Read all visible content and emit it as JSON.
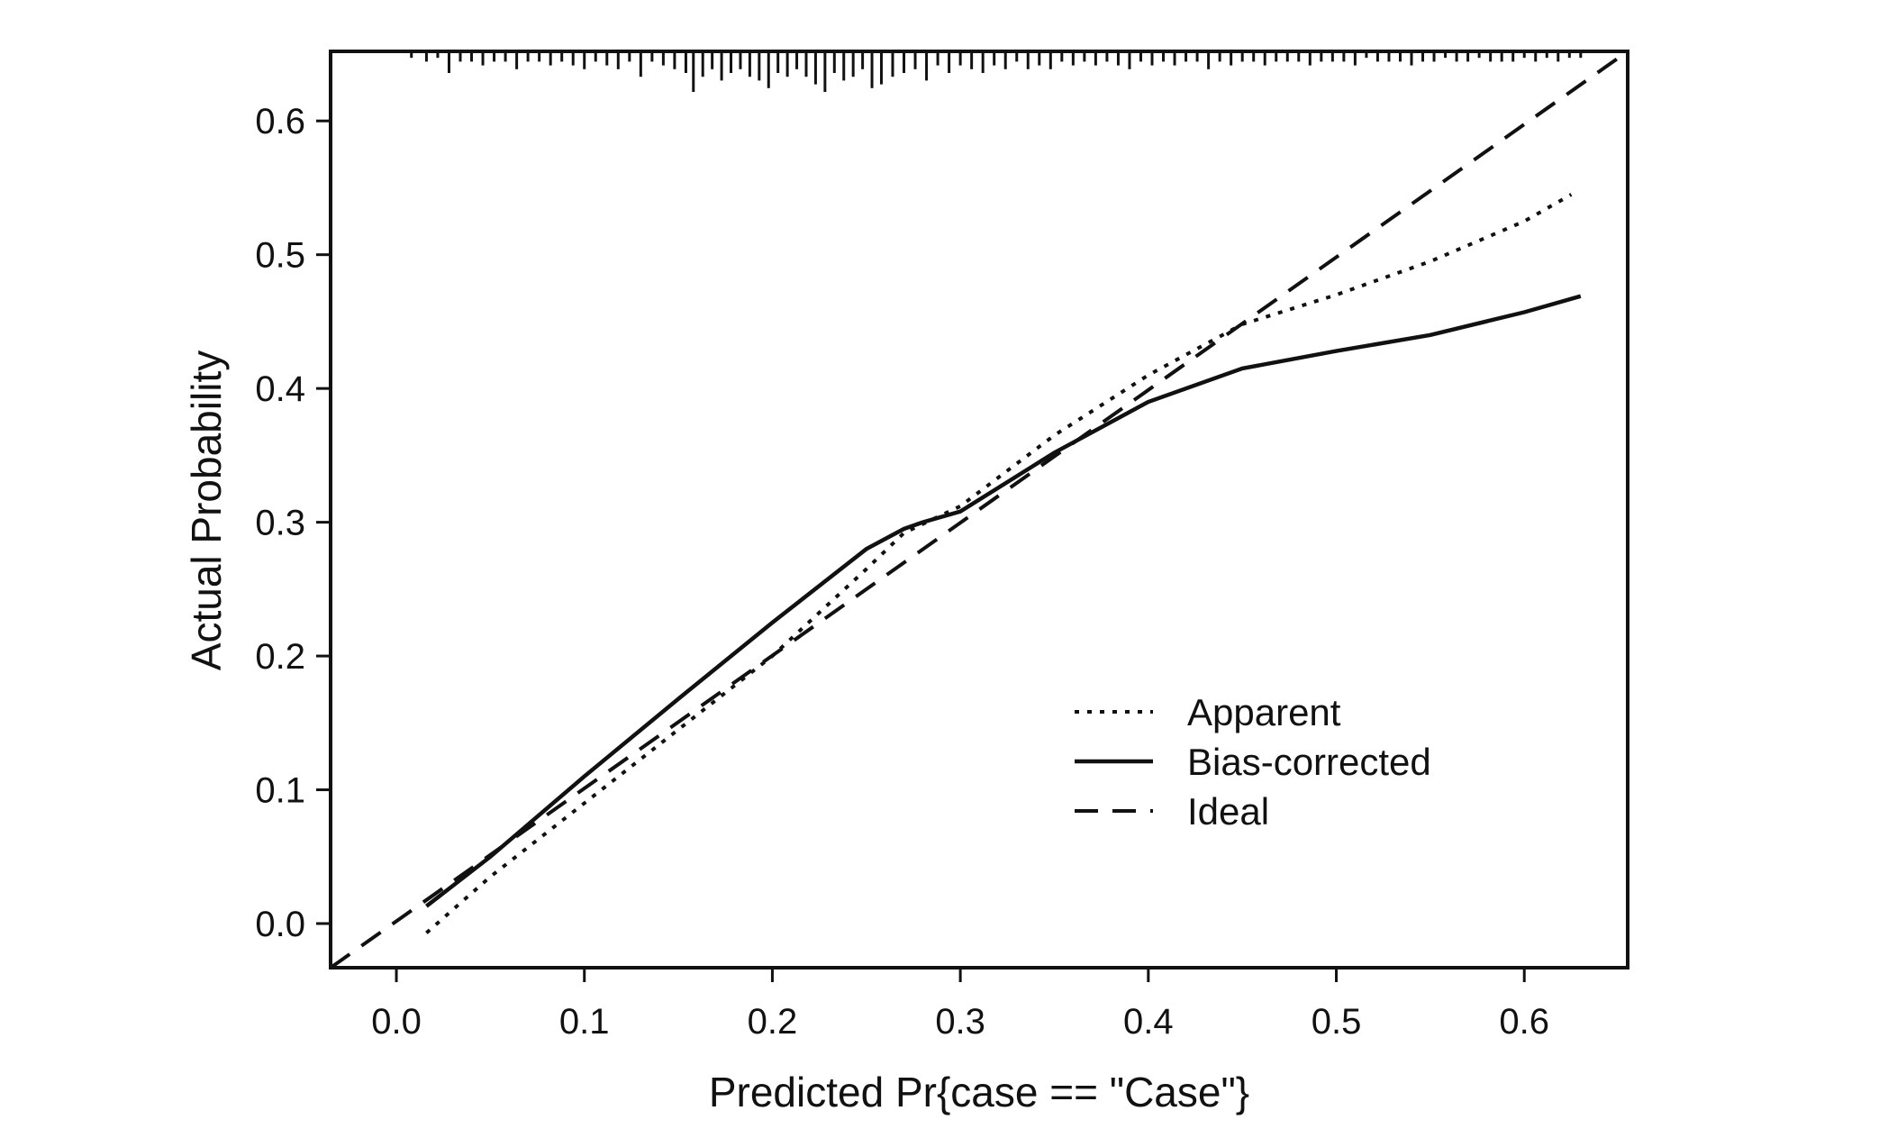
{
  "chart_data": {
    "type": "line",
    "xlabel": "Predicted Pr{case == \"Case\"}",
    "ylabel": "Actual Probability",
    "xlim": [
      -0.035,
      0.655
    ],
    "ylim": [
      -0.033,
      0.652
    ],
    "xticks": [
      0.0,
      0.1,
      0.2,
      0.3,
      0.4,
      0.5,
      0.6
    ],
    "xtick_labels": [
      "0.0",
      "0.1",
      "0.2",
      "0.3",
      "0.4",
      "0.5",
      "0.6"
    ],
    "yticks": [
      0.0,
      0.1,
      0.2,
      0.3,
      0.4,
      0.5,
      0.6
    ],
    "ytick_labels": [
      "0.0",
      "0.1",
      "0.2",
      "0.3",
      "0.4",
      "0.5",
      "0.6"
    ],
    "grid": false,
    "legend_position": "lower-right",
    "series": [
      {
        "name": "Apparent",
        "style": "dotted",
        "x": [
          0.016,
          0.05,
          0.1,
          0.15,
          0.2,
          0.25,
          0.27,
          0.3,
          0.35,
          0.4,
          0.45,
          0.5,
          0.55,
          0.6,
          0.625
        ],
        "y": [
          -0.007,
          0.035,
          0.09,
          0.145,
          0.2,
          0.265,
          0.292,
          0.312,
          0.365,
          0.41,
          0.448,
          0.47,
          0.495,
          0.525,
          0.545
        ]
      },
      {
        "name": "Bias-corrected",
        "style": "solid",
        "x": [
          0.016,
          0.05,
          0.1,
          0.15,
          0.2,
          0.25,
          0.27,
          0.28,
          0.3,
          0.35,
          0.4,
          0.45,
          0.5,
          0.55,
          0.6,
          0.63
        ],
        "y": [
          0.013,
          0.05,
          0.11,
          0.168,
          0.225,
          0.28,
          0.295,
          0.3,
          0.308,
          0.352,
          0.39,
          0.415,
          0.428,
          0.44,
          0.457,
          0.469
        ]
      },
      {
        "name": "Ideal",
        "style": "dashed",
        "x": [
          -0.035,
          0.655
        ],
        "y": [
          -0.035,
          0.655
        ]
      }
    ],
    "rug": {
      "position": "top",
      "x": [
        0.008,
        0.016,
        0.022,
        0.028,
        0.034,
        0.04,
        0.046,
        0.052,
        0.058,
        0.064,
        0.07,
        0.076,
        0.082,
        0.088,
        0.094,
        0.1,
        0.106,
        0.112,
        0.118,
        0.124,
        0.13,
        0.136,
        0.142,
        0.148,
        0.154,
        0.158,
        0.163,
        0.168,
        0.173,
        0.178,
        0.183,
        0.188,
        0.193,
        0.198,
        0.203,
        0.208,
        0.213,
        0.218,
        0.223,
        0.228,
        0.233,
        0.238,
        0.243,
        0.248,
        0.253,
        0.258,
        0.264,
        0.27,
        0.276,
        0.282,
        0.288,
        0.294,
        0.3,
        0.306,
        0.312,
        0.318,
        0.324,
        0.33,
        0.336,
        0.342,
        0.348,
        0.354,
        0.36,
        0.366,
        0.372,
        0.378,
        0.384,
        0.39,
        0.396,
        0.402,
        0.408,
        0.414,
        0.42,
        0.426,
        0.432,
        0.438,
        0.444,
        0.45,
        0.456,
        0.462,
        0.468,
        0.474,
        0.48,
        0.486,
        0.492,
        0.498,
        0.504,
        0.51,
        0.516,
        0.522,
        0.528,
        0.534,
        0.54,
        0.546,
        0.552,
        0.558,
        0.564,
        0.57,
        0.576,
        0.582,
        0.588,
        0.594,
        0.6,
        0.606,
        0.612,
        0.618,
        0.624,
        0.63
      ],
      "counts": [
        1,
        2,
        1,
        5,
        2,
        2,
        3,
        2,
        2,
        4,
        2,
        2,
        3,
        2,
        3,
        4,
        2,
        3,
        4,
        2,
        6,
        2,
        3,
        4,
        5,
        10,
        6,
        4,
        7,
        5,
        4,
        6,
        7,
        9,
        5,
        6,
        4,
        6,
        8,
        10,
        5,
        7,
        6,
        4,
        9,
        8,
        6,
        5,
        4,
        7,
        3,
        5,
        3,
        4,
        5,
        3,
        4,
        2,
        4,
        3,
        4,
        2,
        3,
        2,
        3,
        2,
        3,
        4,
        2,
        3,
        2,
        3,
        2,
        2,
        4,
        2,
        3,
        2,
        2,
        3,
        2,
        2,
        2,
        3,
        2,
        2,
        2,
        3,
        1,
        2,
        2,
        2,
        3,
        2,
        2,
        1,
        2,
        2,
        1,
        2,
        2,
        2,
        1,
        2,
        1,
        2,
        1,
        1
      ]
    }
  }
}
